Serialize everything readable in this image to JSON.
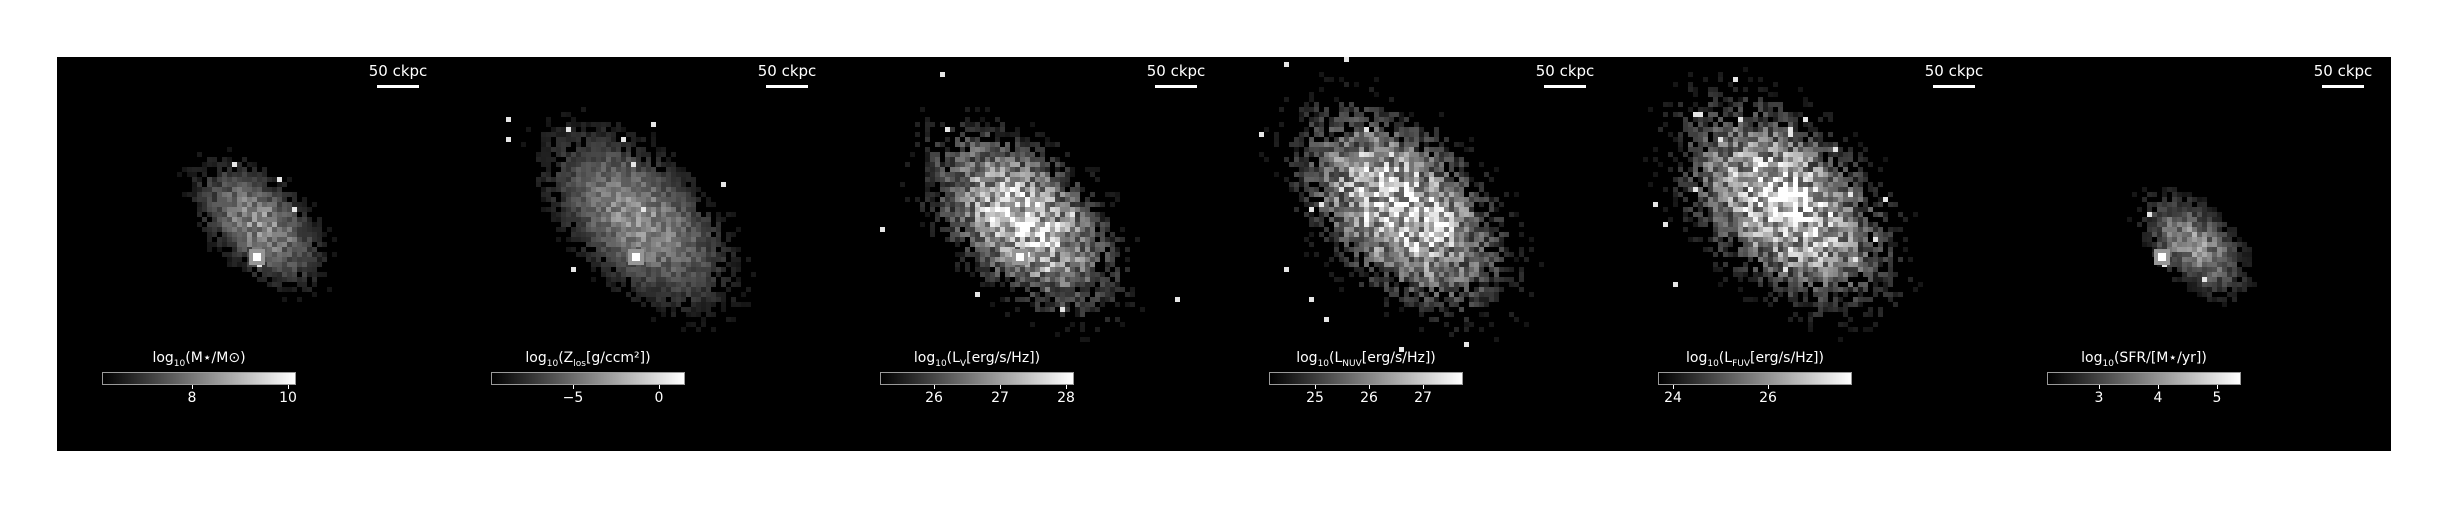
{
  "panels": [
    {
      "scalebar_label": "50 ckpc",
      "colorbar_title_parts": {
        "pre": "log",
        "sub": "10",
        "post": "(M⋆/M⊙)"
      },
      "colorbar_ticks": [
        "8",
        "10"
      ],
      "intensity": "stellar-mass"
    },
    {
      "scalebar_label": "50 ckpc",
      "colorbar_title_parts": {
        "pre": "log",
        "sub": "10",
        "post": "(Z",
        "sub2": "los",
        "post2": "[g/ccm²])"
      },
      "colorbar_ticks": [
        "−5",
        "0"
      ],
      "intensity": "metallicity"
    },
    {
      "scalebar_label": "50 ckpc",
      "colorbar_title_parts": {
        "pre": "log",
        "sub": "10",
        "post": "(L",
        "sub2": "V",
        "post2": "[erg/s/Hz])"
      },
      "colorbar_ticks": [
        "26",
        "27",
        "28"
      ],
      "intensity": "v-band"
    },
    {
      "scalebar_label": "50 ckpc",
      "colorbar_title_parts": {
        "pre": "log",
        "sub": "10",
        "post": "(L",
        "sub2": "NUV",
        "post2": "[erg/s/Hz])"
      },
      "colorbar_ticks": [
        "25",
        "26",
        "27"
      ],
      "intensity": "nuv"
    },
    {
      "scalebar_label": "50 ckpc",
      "colorbar_title_parts": {
        "pre": "log",
        "sub": "10",
        "post": "(L",
        "sub2": "FUV",
        "post2": "[erg/s/Hz])"
      },
      "colorbar_ticks": [
        "24",
        "26"
      ],
      "intensity": "fuv"
    },
    {
      "scalebar_label": "50 ckpc",
      "colorbar_title_parts": {
        "pre": "log",
        "sub": "10",
        "post": "(SFR/[M⋆/yr])"
      },
      "colorbar_ticks": [
        "3",
        "4",
        "5"
      ],
      "intensity": "sfr"
    }
  ],
  "colors": {
    "background": "#000000",
    "text": "#ffffff",
    "frame": "#ffffff"
  }
}
